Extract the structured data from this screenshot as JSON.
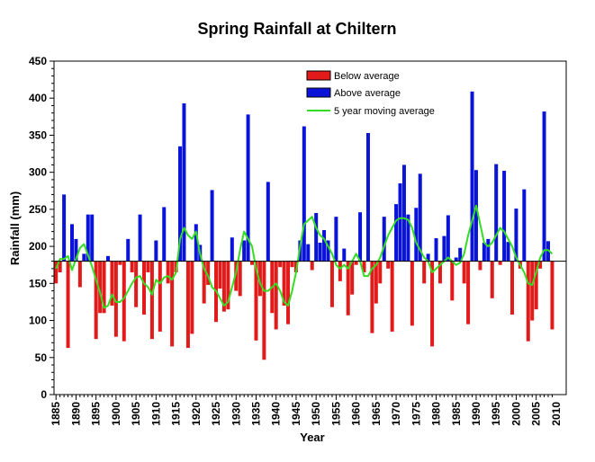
{
  "chart_data": {
    "type": "bar",
    "title": "Spring Rainfall at Chiltern",
    "xlabel": "Year",
    "ylabel": "Rainfall (mm)",
    "ylim": [
      0,
      450
    ],
    "yticks": [
      0,
      50,
      100,
      150,
      200,
      250,
      300,
      350,
      400,
      450
    ],
    "xlim": [
      1884.5,
      2012.5
    ],
    "xticks": [
      1885,
      1890,
      1895,
      1900,
      1905,
      1910,
      1915,
      1920,
      1925,
      1930,
      1935,
      1940,
      1945,
      1950,
      1955,
      1960,
      1965,
      1970,
      1975,
      1980,
      1985,
      1990,
      1995,
      2000,
      2005,
      2010
    ],
    "baseline": 180,
    "legend": {
      "position": "top-right",
      "below_label": "Below average",
      "above_label": "Above average",
      "ma_label": "5 year moving average"
    },
    "colors": {
      "below": "#e21a1a",
      "above": "#0a14d8",
      "ma": "#33dd22"
    },
    "years_start": 1885,
    "values": [
      150,
      165,
      270,
      63,
      230,
      210,
      145,
      190,
      243,
      243,
      75,
      110,
      110,
      187,
      120,
      78,
      175,
      72,
      210,
      165,
      118,
      243,
      108,
      165,
      75,
      208,
      85,
      253,
      150,
      65,
      165,
      335,
      393,
      63,
      82,
      230,
      202,
      123,
      148,
      276,
      98,
      143,
      112,
      115,
      212,
      140,
      133,
      208,
      378,
      175,
      73,
      133,
      47,
      287,
      110,
      88,
      172,
      120,
      95,
      172,
      165,
      208,
      362,
      203,
      168,
      245,
      205,
      222,
      208,
      118,
      240,
      153,
      197,
      107,
      135,
      175,
      246,
      165,
      353,
      83,
      123,
      150,
      240,
      170,
      85,
      257,
      285,
      310,
      243,
      93,
      252,
      298,
      150,
      190,
      65,
      211,
      150,
      214,
      242,
      127,
      185,
      198,
      150,
      95,
      409,
      303,
      168,
      205,
      210,
      130,
      311,
      175,
      302,
      206,
      108,
      251,
      170,
      277,
      72,
      100,
      115,
      170,
      382,
      207,
      88
    ],
    "moving_average": [
      170,
      183,
      183,
      187,
      168,
      183,
      198,
      203,
      188,
      173,
      155,
      138,
      117,
      120,
      135,
      125,
      125,
      130,
      140,
      150,
      158,
      160,
      150,
      145,
      135,
      155,
      150,
      158,
      160,
      155,
      165,
      210,
      225,
      215,
      210,
      220,
      190,
      170,
      160,
      145,
      140,
      130,
      120,
      125,
      145,
      165,
      195,
      220,
      210,
      200,
      170,
      150,
      140,
      140,
      145,
      150,
      140,
      125,
      120,
      140,
      165,
      200,
      230,
      235,
      240,
      225,
      215,
      210,
      200,
      190,
      175,
      170,
      175,
      170,
      180,
      190,
      180,
      160,
      160,
      170,
      175,
      185,
      200,
      215,
      225,
      235,
      238,
      238,
      236,
      225,
      205,
      195,
      185,
      180,
      165,
      170,
      175,
      180,
      185,
      180,
      175,
      178,
      190,
      215,
      235,
      255,
      230,
      205,
      200,
      205,
      215,
      225,
      220,
      210,
      200,
      185,
      175,
      165,
      150,
      148,
      165,
      185,
      195,
      195,
      190
    ]
  }
}
